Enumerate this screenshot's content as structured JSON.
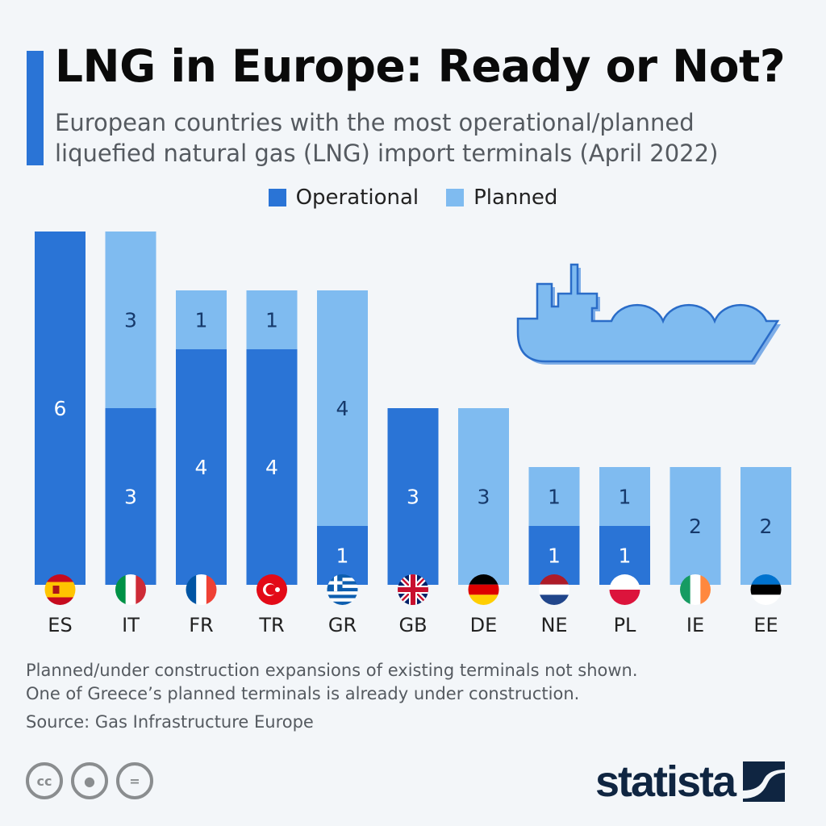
{
  "header": {
    "title": "LNG in Europe: Ready or Not?",
    "subtitle_line1": "European countries with the most operational/planned",
    "subtitle_line2": "liquefied natural gas (LNG) import terminals (April 2022)"
  },
  "colors": {
    "operational": "#2a74d6",
    "planned": "#7fbbf0",
    "label_on_planned": "#16396b",
    "background": "#f3f6f9",
    "accent": "#2a74d6"
  },
  "chart_data": {
    "type": "bar",
    "stacked": true,
    "categories": [
      "ES",
      "IT",
      "FR",
      "TR",
      "GR",
      "GB",
      "DE",
      "NE",
      "PL",
      "IE",
      "EE"
    ],
    "series": [
      {
        "name": "Operational",
        "values": [
          6,
          3,
          4,
          4,
          1,
          3,
          0,
          1,
          1,
          0,
          0
        ]
      },
      {
        "name": "Planned",
        "values": [
          0,
          3,
          1,
          1,
          4,
          0,
          3,
          1,
          1,
          2,
          2
        ]
      }
    ],
    "legend": "top-center",
    "grid": false,
    "ylim": [
      0,
      6
    ]
  },
  "legend": {
    "operational": "Operational",
    "planned": "Planned"
  },
  "icons": {
    "ship": "lng-tanker-ship-icon",
    "flags": "country-flag-icons"
  },
  "footer": {
    "note1": "Planned/under construction expansions of existing terminals not shown.",
    "note2": "One of Greece’s planned terminals is already under construction.",
    "source": "Source: Gas Infrastructure Europe",
    "cc": "cc",
    "brand": "statista"
  }
}
